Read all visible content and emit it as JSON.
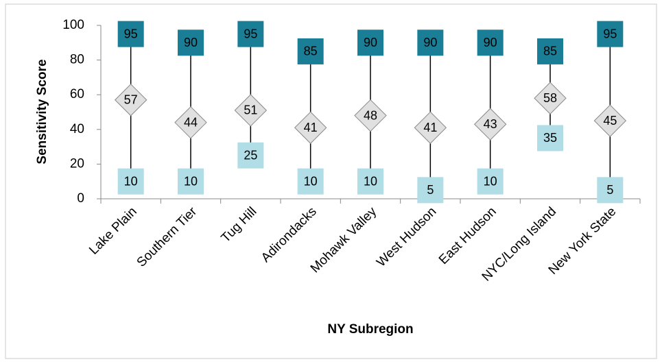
{
  "chart_data": {
    "type": "hilo",
    "x_label": "NY Subregion",
    "y_label": "Sensitivity Score",
    "categories": [
      "Lake Plain",
      "Southern Tier",
      "Tug Hill",
      "Adirondacks",
      "Mohawk Valley",
      "West Hudson",
      "East Hudson",
      "NYC/Long Island",
      "New York State"
    ],
    "series": [
      {
        "color": "#1a7f96",
        "marker": "square",
        "values": [
          95,
          90,
          95,
          85,
          90,
          90,
          90,
          85,
          95
        ]
      },
      {
        "color": "#b0dde6",
        "marker": "square",
        "values": [
          10,
          10,
          25,
          10,
          10,
          5,
          10,
          35,
          5
        ]
      },
      {
        "color": "#e0e0e0",
        "marker": "diamond",
        "values": [
          57,
          44,
          51,
          41,
          48,
          41,
          43,
          58,
          45
        ]
      }
    ],
    "ylim": [
      0,
      100
    ],
    "yticks": [
      0,
      20,
      40,
      60,
      80,
      100
    ]
  }
}
